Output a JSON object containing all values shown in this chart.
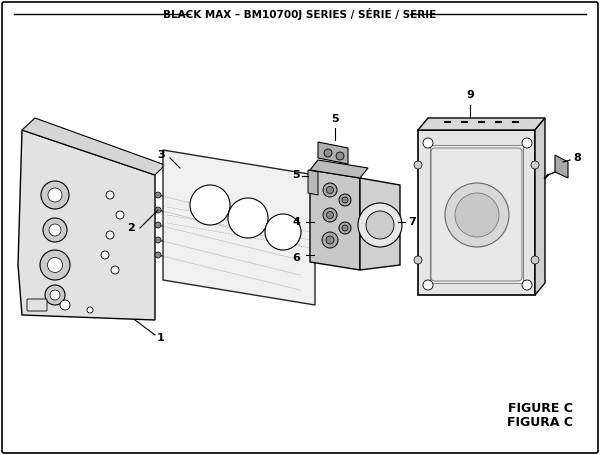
{
  "title": "BLACK MAX – BM10700J SERIES / SÉRIE / SERIE",
  "figure_label": "FIGURE C",
  "figura_label": "FIGURA C",
  "bg_color": "#ffffff",
  "border_color": "#000000",
  "title_fontsize": 7.5,
  "label_fontsize": 8,
  "figure_label_fontsize": 9
}
